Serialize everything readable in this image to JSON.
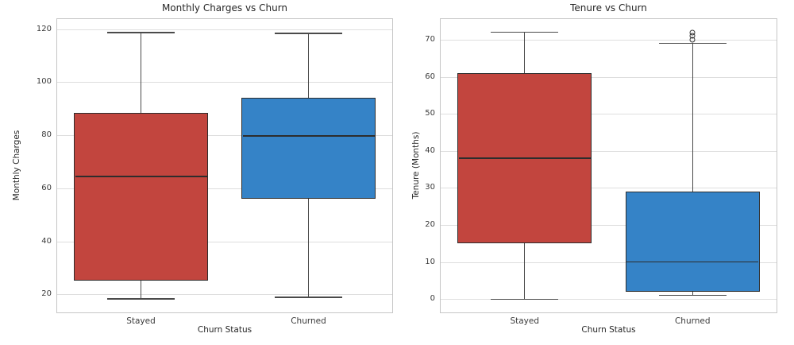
{
  "style": {
    "background": "#ffffff",
    "stayed_color": "#c2453e",
    "churned_color": "#3583c7",
    "box_edge_color": "#2d2d2d",
    "whisker_color": "#4a4a4a",
    "outlier_edge_color": "#333333",
    "grid_color": "#dedede",
    "spine_color": "#c6c6c6",
    "text_color": "#262626"
  },
  "chart_data": [
    {
      "type": "box",
      "title": "Monthly Charges vs Churn",
      "xlabel": "Churn Status",
      "ylabel": "Monthly Charges",
      "categories": [
        "Stayed",
        "Churned"
      ],
      "yticks": [
        20,
        40,
        60,
        80,
        100,
        120
      ],
      "ylim": [
        13.2,
        123.8
      ],
      "grid": "horizontal-only",
      "legend": "none",
      "series": [
        {
          "name": "Stayed",
          "color_key": "stayed_color",
          "whisker_low": 18.25,
          "q1": 25.1,
          "median": 64.45,
          "q3": 88.4,
          "whisker_high": 118.75,
          "outliers": []
        },
        {
          "name": "Churned",
          "color_key": "churned_color",
          "whisker_low": 18.85,
          "q1": 56.15,
          "median": 79.65,
          "q3": 94.2,
          "whisker_high": 118.35,
          "outliers": []
        }
      ]
    },
    {
      "type": "box",
      "title": "Tenure vs Churn",
      "xlabel": "Churn Status",
      "ylabel": "Tenure (Months)",
      "categories": [
        "Stayed",
        "Churned"
      ],
      "yticks": [
        0,
        10,
        20,
        30,
        40,
        50,
        60,
        70
      ],
      "ylim": [
        -3.6,
        75.6
      ],
      "grid": "horizontal-only",
      "legend": "none",
      "series": [
        {
          "name": "Stayed",
          "color_key": "stayed_color",
          "whisker_low": 0,
          "q1": 15,
          "median": 38,
          "q3": 61,
          "whisker_high": 72,
          "outliers": []
        },
        {
          "name": "Churned",
          "color_key": "churned_color",
          "whisker_low": 1,
          "q1": 2,
          "median": 10,
          "q3": 29,
          "whisker_high": 69,
          "outliers": [
            70,
            71,
            72
          ]
        }
      ]
    }
  ]
}
